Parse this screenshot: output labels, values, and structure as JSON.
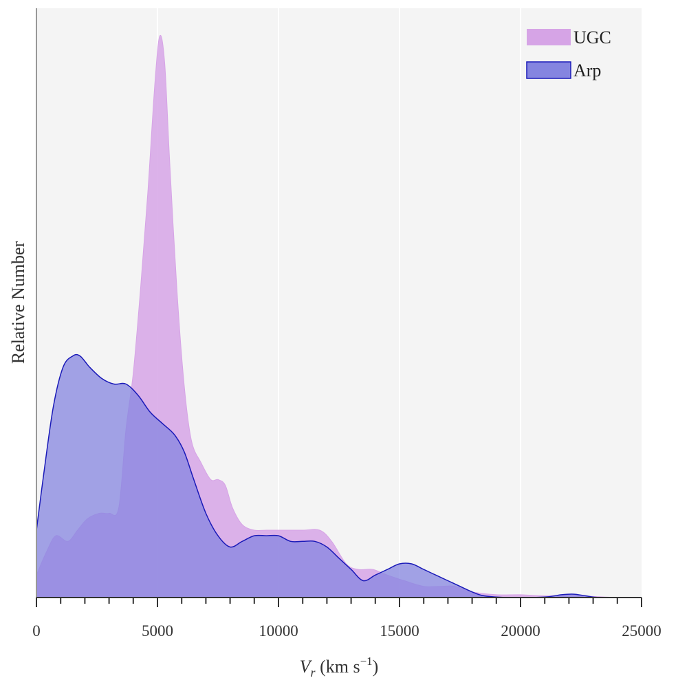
{
  "chart_data": {
    "type": "area",
    "xlabel_main": "V",
    "xlabel_sub": "r",
    "xlabel_units": " (km s",
    "xlabel_exp": "−1",
    "xlabel_close": ")",
    "ylabel": "Relative Number",
    "xlim": [
      0,
      25000
    ],
    "ylim": [
      0,
      1
    ],
    "grid": "vertical",
    "legend_position": "top-right",
    "x_ticks": [
      0,
      5000,
      10000,
      15000,
      20000,
      25000
    ],
    "x_tick_labels": [
      "0",
      "5000",
      "10000",
      "15000",
      "20000",
      "25000"
    ],
    "series": [
      {
        "name": "UGC",
        "color": "#d6a4e6",
        "edge": "#d6a4e6",
        "points": [
          [
            0,
            0.04
          ],
          [
            400,
            0.08
          ],
          [
            800,
            0.11
          ],
          [
            1300,
            0.1
          ],
          [
            1700,
            0.12
          ],
          [
            2100,
            0.14
          ],
          [
            2600,
            0.15
          ],
          [
            3000,
            0.15
          ],
          [
            3400,
            0.16
          ],
          [
            3700,
            0.3
          ],
          [
            4000,
            0.4
          ],
          [
            4300,
            0.55
          ],
          [
            4600,
            0.72
          ],
          [
            4900,
            0.92
          ],
          [
            5100,
            1.0
          ],
          [
            5300,
            0.95
          ],
          [
            5500,
            0.78
          ],
          [
            5800,
            0.55
          ],
          [
            6100,
            0.38
          ],
          [
            6400,
            0.28
          ],
          [
            6800,
            0.24
          ],
          [
            7200,
            0.21
          ],
          [
            7500,
            0.21
          ],
          [
            7800,
            0.2
          ],
          [
            8100,
            0.16
          ],
          [
            8500,
            0.13
          ],
          [
            9000,
            0.12
          ],
          [
            9500,
            0.12
          ],
          [
            10000,
            0.12
          ],
          [
            11000,
            0.12
          ],
          [
            11700,
            0.12
          ],
          [
            12200,
            0.1
          ],
          [
            12800,
            0.06
          ],
          [
            13300,
            0.05
          ],
          [
            13900,
            0.05
          ],
          [
            14500,
            0.04
          ],
          [
            15200,
            0.03
          ],
          [
            16000,
            0.02
          ],
          [
            16700,
            0.02
          ],
          [
            17300,
            0.02
          ],
          [
            18000,
            0.01
          ],
          [
            19000,
            0.005
          ],
          [
            20000,
            0.005
          ],
          [
            21000,
            0.003
          ],
          [
            22000,
            0.004
          ],
          [
            23000,
            0.002
          ],
          [
            24000,
            0.0
          ],
          [
            25000,
            0.0
          ]
        ]
      },
      {
        "name": "Arp",
        "color": "#8585e0",
        "edge": "#1a1ab8",
        "points": [
          [
            0,
            0.12
          ],
          [
            300,
            0.22
          ],
          [
            700,
            0.34
          ],
          [
            1100,
            0.41
          ],
          [
            1500,
            0.43
          ],
          [
            1800,
            0.43
          ],
          [
            2200,
            0.41
          ],
          [
            2700,
            0.39
          ],
          [
            3200,
            0.38
          ],
          [
            3700,
            0.38
          ],
          [
            4200,
            0.36
          ],
          [
            4700,
            0.33
          ],
          [
            5200,
            0.31
          ],
          [
            5700,
            0.29
          ],
          [
            6100,
            0.26
          ],
          [
            6500,
            0.21
          ],
          [
            7000,
            0.15
          ],
          [
            7500,
            0.11
          ],
          [
            8000,
            0.09
          ],
          [
            8500,
            0.1
          ],
          [
            9000,
            0.11
          ],
          [
            9500,
            0.11
          ],
          [
            10000,
            0.11
          ],
          [
            10500,
            0.1
          ],
          [
            11000,
            0.1
          ],
          [
            11500,
            0.1
          ],
          [
            12000,
            0.09
          ],
          [
            12500,
            0.07
          ],
          [
            13000,
            0.05
          ],
          [
            13500,
            0.03
          ],
          [
            14000,
            0.04
          ],
          [
            14500,
            0.05
          ],
          [
            15000,
            0.06
          ],
          [
            15500,
            0.06
          ],
          [
            16000,
            0.05
          ],
          [
            16500,
            0.04
          ],
          [
            17000,
            0.03
          ],
          [
            17500,
            0.02
          ],
          [
            18000,
            0.01
          ],
          [
            18500,
            0.003
          ],
          [
            19500,
            0.0
          ],
          [
            21000,
            0.001
          ],
          [
            21700,
            0.005
          ],
          [
            22200,
            0.006
          ],
          [
            22700,
            0.003
          ],
          [
            23300,
            0.0
          ],
          [
            25000,
            0.0
          ]
        ]
      }
    ]
  }
}
